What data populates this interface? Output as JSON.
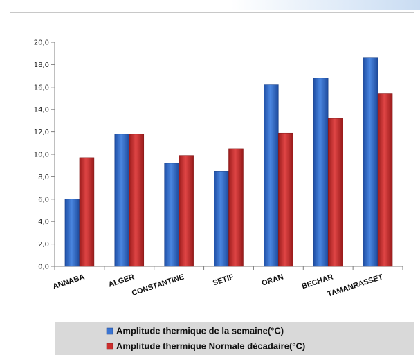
{
  "chart_data": {
    "type": "bar",
    "title": "",
    "xlabel": "",
    "ylabel": "",
    "categories": [
      "ANNABA",
      "ALGER",
      "CONSTANTINE",
      "SETIF",
      "ORAN",
      "BECHAR",
      "TAMANRASSET"
    ],
    "series": [
      {
        "name": "Amplitude thermique de la semaine(°C)",
        "color": "#2f66c4",
        "values": [
          6.0,
          11.8,
          9.2,
          8.5,
          16.2,
          16.8,
          18.6
        ]
      },
      {
        "name": "Amplitude thermique Normale décadaire(°C)",
        "color": "#c42a2a",
        "values": [
          9.7,
          11.8,
          9.9,
          10.5,
          11.9,
          13.2,
          15.4
        ]
      }
    ],
    "ylim": [
      0,
      20
    ],
    "yticks": [
      "0,0",
      "2,0",
      "4,0",
      "6,0",
      "8,0",
      "10,0",
      "12,0",
      "14,0",
      "16,0",
      "18,0",
      "20,0"
    ],
    "ytick_step": 2,
    "grid": false,
    "legend_position": "bottom"
  }
}
